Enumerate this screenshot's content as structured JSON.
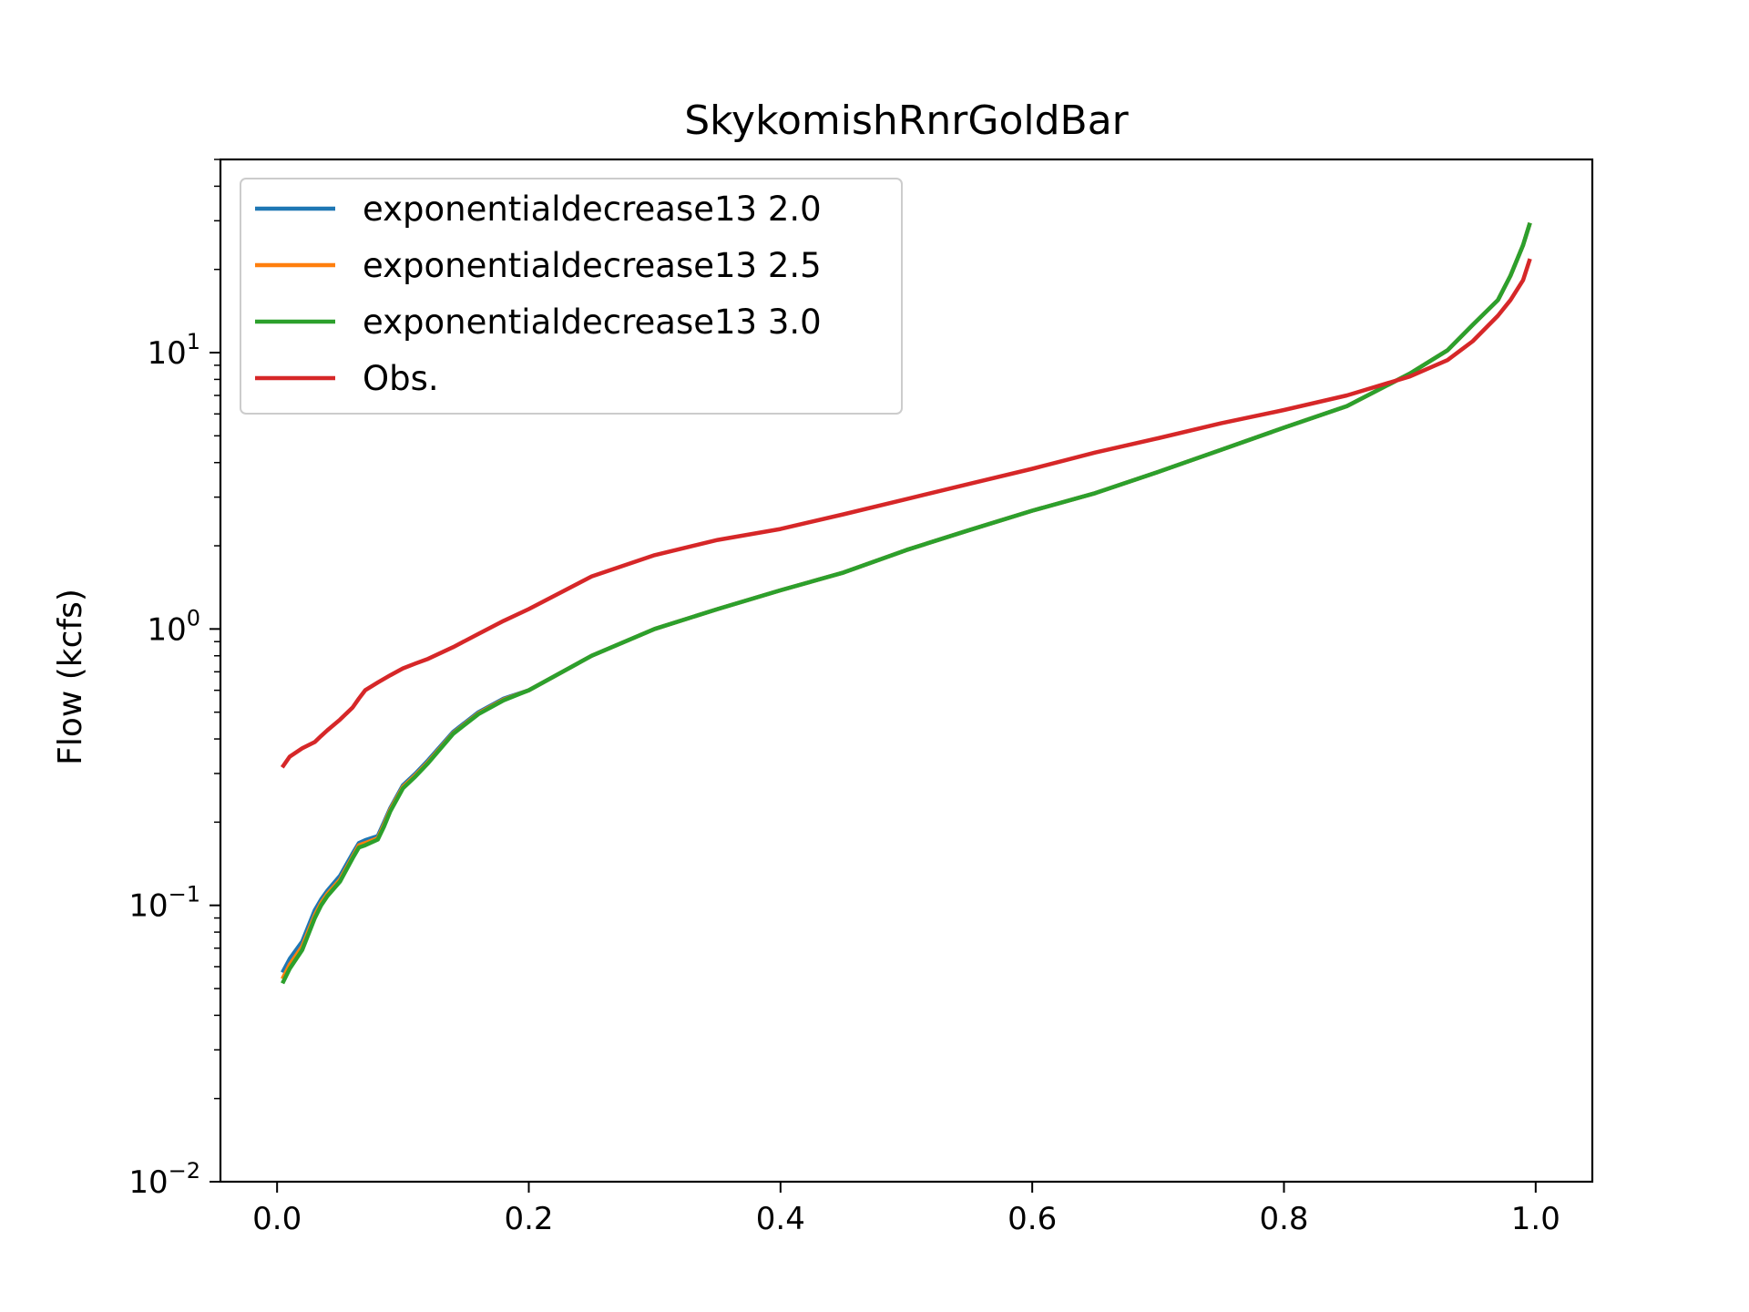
{
  "chart_data": {
    "type": "line",
    "title": "SkykomishRnrGoldBar",
    "xlabel": "",
    "ylabel": "Flow (kcfs)",
    "xlim": [
      -0.045,
      1.045
    ],
    "ylim": [
      0.01,
      50
    ],
    "yscale": "log",
    "grid": false,
    "legend_position": "top-left",
    "x_ticks": [
      "0.0",
      "0.2",
      "0.4",
      "0.6",
      "0.8",
      "1.0"
    ],
    "y_ticks": [
      {
        "base": "10",
        "exp": "−2"
      },
      {
        "base": "10",
        "exp": "−1"
      },
      {
        "base": "10",
        "exp": "0"
      },
      {
        "base": "10",
        "exp": "1"
      }
    ],
    "x": [
      0.005,
      0.01,
      0.02,
      0.03,
      0.035,
      0.04,
      0.05,
      0.06,
      0.065,
      0.07,
      0.08,
      0.085,
      0.09,
      0.1,
      0.11,
      0.12,
      0.14,
      0.16,
      0.18,
      0.2,
      0.25,
      0.3,
      0.35,
      0.4,
      0.45,
      0.5,
      0.55,
      0.6,
      0.65,
      0.7,
      0.75,
      0.8,
      0.85,
      0.9,
      0.93,
      0.95,
      0.97,
      0.98,
      0.99,
      0.995
    ],
    "series": [
      {
        "name": "exponentialdecrease13 2.0",
        "color": "#1f77b4",
        "values": [
          0.058,
          0.064,
          0.074,
          0.096,
          0.105,
          0.113,
          0.128,
          0.154,
          0.168,
          0.172,
          0.178,
          0.2,
          0.225,
          0.272,
          0.3,
          0.335,
          0.425,
          0.5,
          0.56,
          0.6,
          0.8,
          1.0,
          1.18,
          1.38,
          1.6,
          1.93,
          2.28,
          2.68,
          3.1,
          3.7,
          4.45,
          5.35,
          6.4,
          8.4,
          10.2,
          12.6,
          15.5,
          19.0,
          24.5,
          29.0
        ]
      },
      {
        "name": "exponentialdecrease13 2.5",
        "color": "#ff7f0e",
        "values": [
          0.055,
          0.061,
          0.071,
          0.092,
          0.102,
          0.11,
          0.124,
          0.15,
          0.165,
          0.168,
          0.175,
          0.196,
          0.222,
          0.268,
          0.296,
          0.33,
          0.42,
          0.495,
          0.555,
          0.6,
          0.8,
          1.0,
          1.18,
          1.38,
          1.6,
          1.93,
          2.28,
          2.68,
          3.1,
          3.7,
          4.45,
          5.35,
          6.4,
          8.4,
          10.2,
          12.6,
          15.5,
          19.0,
          24.5,
          29.0
        ]
      },
      {
        "name": "exponentialdecrease13 3.0",
        "color": "#2ca02c",
        "values": [
          0.053,
          0.059,
          0.069,
          0.09,
          0.1,
          0.108,
          0.122,
          0.148,
          0.162,
          0.165,
          0.173,
          0.193,
          0.219,
          0.265,
          0.293,
          0.327,
          0.418,
          0.492,
          0.552,
          0.6,
          0.8,
          1.0,
          1.18,
          1.38,
          1.6,
          1.93,
          2.28,
          2.68,
          3.1,
          3.7,
          4.45,
          5.35,
          6.4,
          8.4,
          10.2,
          12.6,
          15.5,
          19.0,
          24.5,
          29.0
        ]
      },
      {
        "name": "Obs.",
        "color": "#d62728",
        "values": [
          0.32,
          0.345,
          0.37,
          0.39,
          0.41,
          0.43,
          0.47,
          0.52,
          0.56,
          0.6,
          0.64,
          0.66,
          0.68,
          0.72,
          0.75,
          0.78,
          0.86,
          0.96,
          1.07,
          1.18,
          1.55,
          1.85,
          2.1,
          2.3,
          2.6,
          2.95,
          3.35,
          3.8,
          4.35,
          4.9,
          5.55,
          6.2,
          7.0,
          8.2,
          9.4,
          11.0,
          13.6,
          15.5,
          18.3,
          21.5
        ]
      }
    ]
  }
}
